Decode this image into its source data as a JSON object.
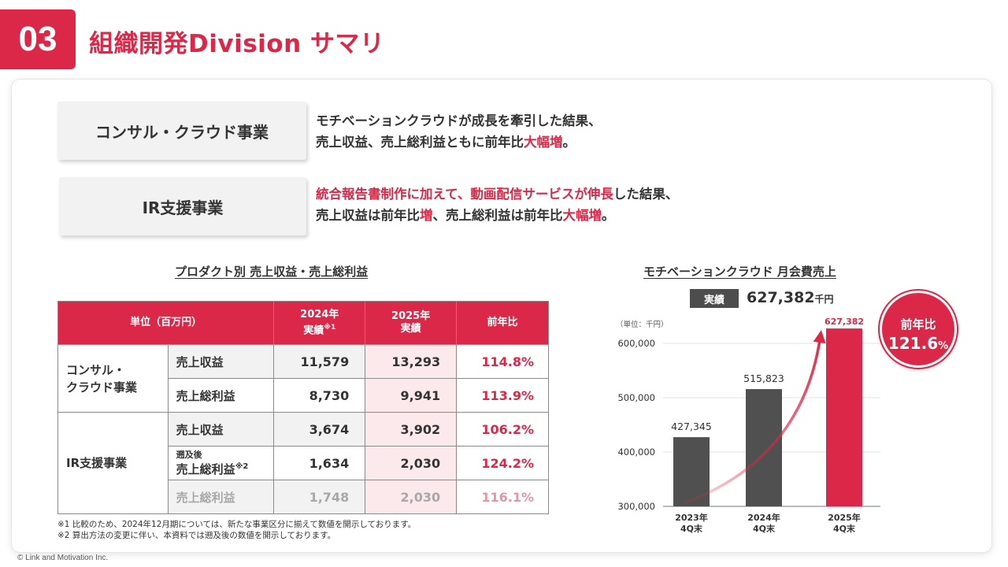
{
  "header": {
    "section_number": "03",
    "title": "組織開発Division サマリ"
  },
  "segments": [
    {
      "name": "コンサル・クラウド事業",
      "desc_line1": [
        {
          "text": "モチベーションクラウドが成長を牽引した結果、",
          "red": false
        }
      ],
      "desc_line2": [
        {
          "text": "売上収益、売上総利益ともに前年比",
          "red": false
        },
        {
          "text": "大幅増",
          "red": true
        },
        {
          "text": "。",
          "red": false
        }
      ]
    },
    {
      "name": "IR支援事業",
      "desc_line1": [
        {
          "text": "統合報告書制作に加えて、動画配信サービスが伸長",
          "red": true
        },
        {
          "text": "した結果、",
          "red": false
        }
      ],
      "desc_line2": [
        {
          "text": "売上収益は前年比",
          "red": false
        },
        {
          "text": "増",
          "red": true
        },
        {
          "text": "、売上総利益は前年比",
          "red": false
        },
        {
          "text": "大幅増",
          "red": true
        },
        {
          "text": "。",
          "red": false
        }
      ]
    }
  ],
  "table": {
    "title": "プロダクト別 売上収益・売上総利益",
    "header": {
      "unit": "単位（百万円）",
      "y2024_line1": "2024年",
      "y2024_line2": "実績",
      "y2024_note": "※1",
      "y2025_line1": "2025年",
      "y2025_line2": "実績",
      "yoy": "前年比"
    },
    "groups": [
      {
        "segment_line1": "コンサル・",
        "segment_line2": "クラウド事業",
        "rows": [
          {
            "metric": "売上収益",
            "v2024": "11,579",
            "v2025": "13,293",
            "yoy": "114.8%"
          },
          {
            "metric": "売上総利益",
            "v2024": "8,730",
            "v2025": "9,941",
            "yoy": "113.9%"
          }
        ]
      },
      {
        "segment": "IR支援事業",
        "rows": [
          {
            "metric": "売上収益",
            "v2024": "3,674",
            "v2025": "3,902",
            "yoy": "106.2%"
          },
          {
            "metric_sub": "遡及後",
            "metric": "売上総利益",
            "metric_note": "※2",
            "v2024": "1,634",
            "v2025": "2,030",
            "yoy": "124.2%"
          },
          {
            "metric": "売上総利益",
            "v2024": "1,748",
            "v2025": "2,030",
            "yoy": "116.1%"
          }
        ]
      }
    ],
    "notes": [
      "※1 比較のため、2024年12月期については、新たな事業区分に揃えて数値を開示しております。",
      "※2 算出方法の変更に伴い、本資料では遡及後の数値を開示しております。"
    ]
  },
  "chart_header": {
    "title": "モチベーションクラウド 月会費売上",
    "actual_tag": "実績",
    "actual_value": "627,382",
    "actual_unit": "千円",
    "yoy_label": "前年比",
    "yoy_value": "121.6",
    "yoy_unit": "%"
  },
  "chart_data": {
    "type": "bar",
    "title": "モチベーションクラウド 月会費売上",
    "unit_label": "（単位：千円）",
    "categories": [
      [
        "2023年",
        "4Q末"
      ],
      [
        "2024年",
        "4Q末"
      ],
      [
        "2025年",
        "4Q末"
      ]
    ],
    "values": [
      427345,
      515823,
      627382
    ],
    "value_labels": [
      "427,345",
      "515,823",
      "627,382"
    ],
    "highlight_index": 2,
    "yticks": [
      300000,
      400000,
      500000,
      600000
    ],
    "ytick_labels": [
      "300,000",
      "400,000",
      "500,000",
      "600,000"
    ],
    "ylim": [
      300000,
      627382
    ],
    "colors": {
      "bar": "#505050",
      "highlight": "#dc2848"
    }
  },
  "footer": {
    "copyright": "© Link and Motivation Inc."
  }
}
